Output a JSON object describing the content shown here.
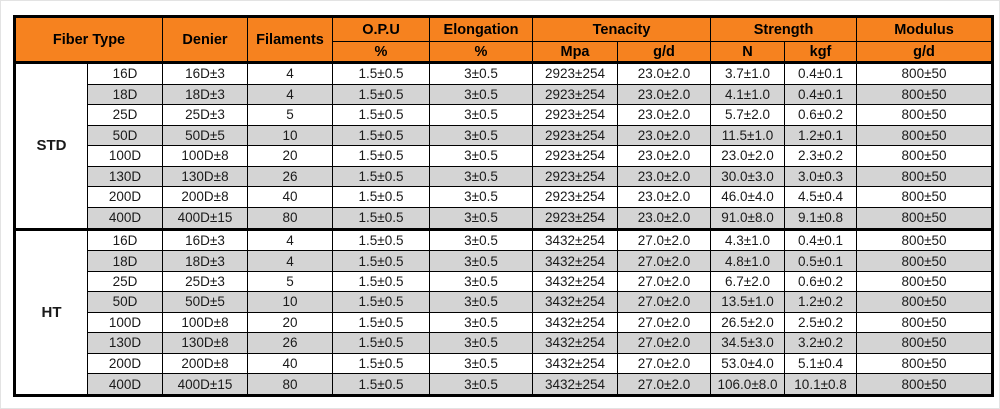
{
  "colors": {
    "header_bg": "#F6821F",
    "row_alt_bg": "#D4D4D4",
    "border": "#000000",
    "text": "#1a1a1a"
  },
  "table": {
    "header": {
      "fiber_type": "Fiber Type",
      "denier": "Denier",
      "filaments": "Filaments",
      "opu": "O.P.U",
      "opu_unit": "%",
      "elongation": "Elongation",
      "elongation_unit": "%",
      "tenacity": "Tenacity",
      "tenacity_unit_1": "Mpa",
      "tenacity_unit_2": "g/d",
      "strength": "Strength",
      "strength_unit_1": "N",
      "strength_unit_2": "kgf",
      "modulus": "Modulus",
      "modulus_unit": "g/d"
    },
    "column_keys": [
      "denier-size",
      "denier-tolerance",
      "filaments",
      "opu-percent",
      "elongation-percent",
      "tenacity-mpa",
      "tenacity-gd",
      "strength-n",
      "strength-kgf",
      "modulus-gd"
    ],
    "groups": [
      {
        "name": "STD",
        "rows": [
          [
            "16D",
            "16D±3",
            "4",
            "1.5±0.5",
            "3±0.5",
            "2923±254",
            "23.0±2.0",
            "3.7±1.0",
            "0.4±0.1",
            "800±50"
          ],
          [
            "18D",
            "18D±3",
            "4",
            "1.5±0.5",
            "3±0.5",
            "2923±254",
            "23.0±2.0",
            "4.1±1.0",
            "0.4±0.1",
            "800±50"
          ],
          [
            "25D",
            "25D±3",
            "5",
            "1.5±0.5",
            "3±0.5",
            "2923±254",
            "23.0±2.0",
            "5.7±2.0",
            "0.6±0.2",
            "800±50"
          ],
          [
            "50D",
            "50D±5",
            "10",
            "1.5±0.5",
            "3±0.5",
            "2923±254",
            "23.0±2.0",
            "11.5±1.0",
            "1.2±0.1",
            "800±50"
          ],
          [
            "100D",
            "100D±8",
            "20",
            "1.5±0.5",
            "3±0.5",
            "2923±254",
            "23.0±2.0",
            "23.0±2.0",
            "2.3±0.2",
            "800±50"
          ],
          [
            "130D",
            "130D±8",
            "26",
            "1.5±0.5",
            "3±0.5",
            "2923±254",
            "23.0±2.0",
            "30.0±3.0",
            "3.0±0.3",
            "800±50"
          ],
          [
            "200D",
            "200D±8",
            "40",
            "1.5±0.5",
            "3±0.5",
            "2923±254",
            "23.0±2.0",
            "46.0±4.0",
            "4.5±0.4",
            "800±50"
          ],
          [
            "400D",
            "400D±15",
            "80",
            "1.5±0.5",
            "3±0.5",
            "2923±254",
            "23.0±2.0",
            "91.0±8.0",
            "9.1±0.8",
            "800±50"
          ]
        ]
      },
      {
        "name": "HT",
        "rows": [
          [
            "16D",
            "16D±3",
            "4",
            "1.5±0.5",
            "3±0.5",
            "3432±254",
            "27.0±2.0",
            "4.3±1.0",
            "0.4±0.1",
            "800±50"
          ],
          [
            "18D",
            "18D±3",
            "4",
            "1.5±0.5",
            "3±0.5",
            "3432±254",
            "27.0±2.0",
            "4.8±1.0",
            "0.5±0.1",
            "800±50"
          ],
          [
            "25D",
            "25D±3",
            "5",
            "1.5±0.5",
            "3±0.5",
            "3432±254",
            "27.0±2.0",
            "6.7±2.0",
            "0.6±0.2",
            "800±50"
          ],
          [
            "50D",
            "50D±5",
            "10",
            "1.5±0.5",
            "3±0.5",
            "3432±254",
            "27.0±2.0",
            "13.5±1.0",
            "1.2±0.2",
            "800±50"
          ],
          [
            "100D",
            "100D±8",
            "20",
            "1.5±0.5",
            "3±0.5",
            "3432±254",
            "27.0±2.0",
            "26.5±2.0",
            "2.5±0.2",
            "800±50"
          ],
          [
            "130D",
            "130D±8",
            "26",
            "1.5±0.5",
            "3±0.5",
            "3432±254",
            "27.0±2.0",
            "34.5±3.0",
            "3.2±0.2",
            "800±50"
          ],
          [
            "200D",
            "200D±8",
            "40",
            "1.5±0.5",
            "3±0.5",
            "3432±254",
            "27.0±2.0",
            "53.0±4.0",
            "5.1±0.4",
            "800±50"
          ],
          [
            "400D",
            "400D±15",
            "80",
            "1.5±0.5",
            "3±0.5",
            "3432±254",
            "27.0±2.0",
            "106.0±8.0",
            "10.1±0.8",
            "800±50"
          ]
        ]
      }
    ]
  }
}
